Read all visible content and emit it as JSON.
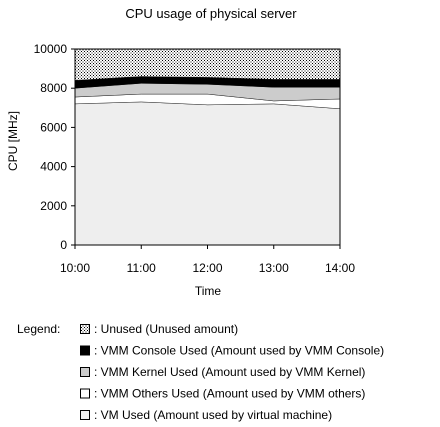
{
  "chart_data": {
    "type": "area",
    "stacked": true,
    "title": "CPU usage of physical server",
    "xlabel": "Time",
    "ylabel": "CPU [MHz]",
    "x": [
      "10:00",
      "11:00",
      "12:00",
      "13:00",
      "14:00"
    ],
    "ylim": [
      0,
      10000
    ],
    "yticks": [
      0,
      2000,
      4000,
      6000,
      8000,
      10000
    ],
    "grid": false,
    "legend_title": "Legend:",
    "legend_position": "bottom",
    "series": [
      {
        "key": "vm",
        "legend": "VM Used (Amount used by virtual machine)",
        "values": [
          7200,
          7300,
          7150,
          7200,
          6950
        ],
        "fill": "#eeeeee"
      },
      {
        "key": "vmm_others",
        "legend": "VMM Others Used (Amount used by VMM others)",
        "values": [
          350,
          400,
          550,
          150,
          500
        ],
        "fill": "#ffffff"
      },
      {
        "key": "vmm_kernel",
        "legend": "VMM Kernel Used (Amount used by VMM Kernel)",
        "values": [
          450,
          550,
          500,
          700,
          600
        ],
        "fill": "#cccccc"
      },
      {
        "key": "vmm_console",
        "legend": "VMM Console Used (Amount used by VMM Console)",
        "values": [
          400,
          350,
          350,
          400,
          400
        ],
        "fill": "#000000"
      },
      {
        "key": "unused",
        "legend": "Unused (Unused amount)",
        "values": [
          1600,
          1400,
          1450,
          1550,
          1550
        ],
        "fill": "dots"
      }
    ]
  }
}
